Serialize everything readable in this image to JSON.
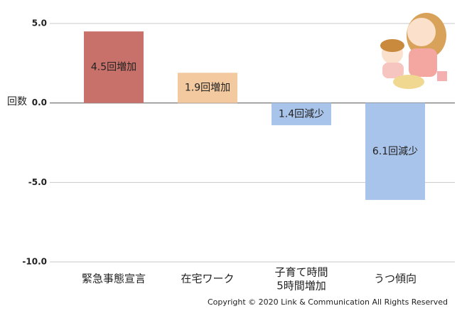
{
  "chart_data": {
    "type": "bar",
    "y_label": "回数",
    "categories": [
      "緊急事態宣言",
      "在宅ワーク",
      "子育て時間\n5時間増加",
      "うつ傾向"
    ],
    "values": [
      4.5,
      1.9,
      -1.4,
      -6.1
    ],
    "value_labels": [
      "4.5回増加",
      "1.9回増加",
      "1.4回減少",
      "6.1回減少"
    ],
    "colors": [
      "#c8716a",
      "#f3c9a0",
      "#a9c4ea",
      "#a9c4ea"
    ],
    "ylim": [
      -10,
      5
    ],
    "yticks": [
      {
        "value": 5,
        "label": "5.0"
      },
      {
        "value": 0,
        "label": "0.0"
      },
      {
        "value": -5,
        "label": "-5.0"
      },
      {
        "value": -10,
        "label": "-10.0"
      }
    ],
    "grid": true,
    "copyright": "Copyright © 2020 Link & Communication All Rights Reserved"
  }
}
